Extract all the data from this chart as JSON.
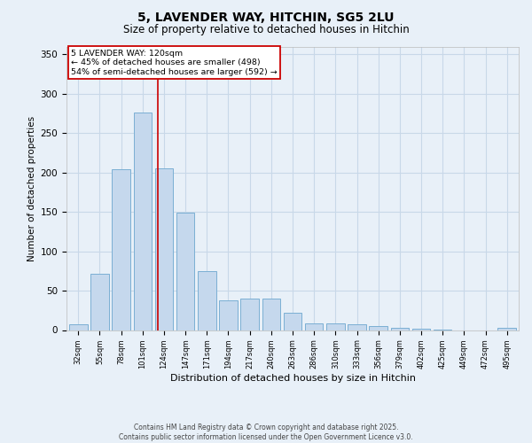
{
  "title1": "5, LAVENDER WAY, HITCHIN, SG5 2LU",
  "title2": "Size of property relative to detached houses in Hitchin",
  "xlabel": "Distribution of detached houses by size in Hitchin",
  "ylabel": "Number of detached properties",
  "categories": [
    "32sqm",
    "55sqm",
    "78sqm",
    "101sqm",
    "124sqm",
    "147sqm",
    "171sqm",
    "194sqm",
    "217sqm",
    "240sqm",
    "263sqm",
    "286sqm",
    "310sqm",
    "333sqm",
    "356sqm",
    "379sqm",
    "402sqm",
    "425sqm",
    "449sqm",
    "472sqm",
    "495sqm"
  ],
  "values": [
    7,
    72,
    204,
    276,
    205,
    149,
    75,
    38,
    40,
    40,
    22,
    8,
    8,
    7,
    5,
    3,
    2,
    1,
    0,
    0,
    3
  ],
  "bar_color": "#c5d8ed",
  "bar_edge_color": "#7bafd4",
  "grid_color": "#c8d8e8",
  "background_color": "#e8f0f8",
  "annotation_line1": "5 LAVENDER WAY: 120sqm",
  "annotation_line2": "← 45% of detached houses are smaller (498)",
  "annotation_line3": "54% of semi-detached houses are larger (592) →",
  "annotation_box_color": "#ffffff",
  "annotation_box_edgecolor": "#cc0000",
  "vline_x": 3.72,
  "ylim": [
    0,
    360
  ],
  "yticks": [
    0,
    50,
    100,
    150,
    200,
    250,
    300,
    350
  ],
  "footer_line1": "Contains HM Land Registry data © Crown copyright and database right 2025.",
  "footer_line2": "Contains public sector information licensed under the Open Government Licence v3.0."
}
